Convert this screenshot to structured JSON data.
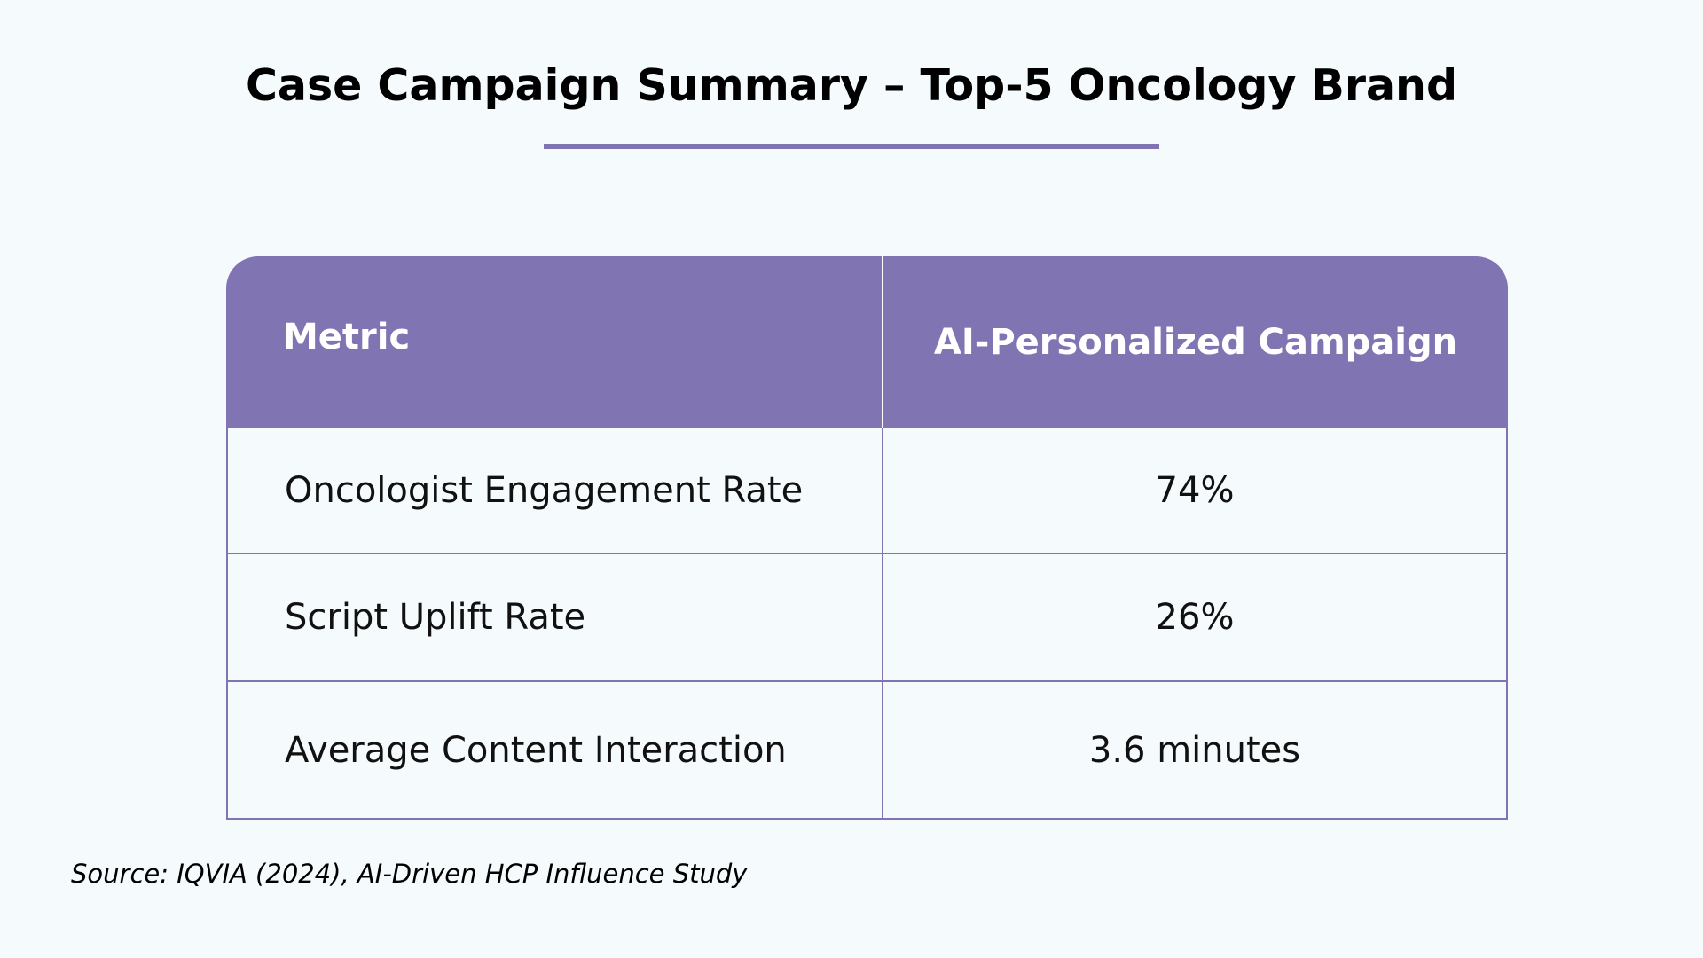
{
  "title": "Case Campaign Summary – Top-5 Oncology Brand",
  "colors": {
    "accent": "#8174b3",
    "background": "#f5fbfd",
    "header_text": "#ffffff"
  },
  "table": {
    "headers": [
      "Metric",
      "AI-Personalized Campaign"
    ],
    "rows": [
      {
        "metric": "Oncologist Engagement Rate",
        "value": "74%"
      },
      {
        "metric": "Script Uplift Rate",
        "value": "26%"
      },
      {
        "metric": "Average Content Interaction",
        "value": "3.6 minutes"
      }
    ]
  },
  "source": "Source: IQVIA (2024), AI-Driven HCP Influence Study"
}
